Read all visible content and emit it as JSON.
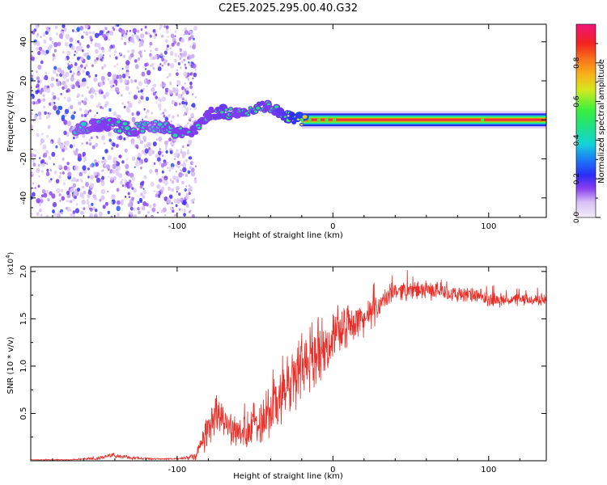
{
  "figure_title": "C2E5.2025.295.00.40.G32",
  "colors": {
    "snr_line": "#e8302a",
    "frame": "#000000"
  },
  "chart_data": [
    {
      "type": "heatmap",
      "title": "C2E5.2025.295.00.40.G32",
      "xlabel": "Height of straight line (km)",
      "ylabel": "Frequency (Hz)",
      "xlim": [
        -194,
        137
      ],
      "ylim": [
        -50,
        49
      ],
      "x_ticks": [
        -100,
        0,
        100
      ],
      "x_tick_labels": [
        "-100",
        "0",
        "100"
      ],
      "y_ticks": [
        -40,
        -20,
        0,
        20,
        40
      ],
      "y_tick_labels": [
        "-40",
        "-20",
        "0",
        "20",
        "40"
      ],
      "colorbar": {
        "label": "Normalized spectral amplitude",
        "range": [
          0,
          1
        ],
        "ticks": [
          0.0,
          0.2,
          0.4,
          0.6,
          0.8
        ],
        "tick_labels": [
          "0.0",
          "0.2",
          "0.4",
          "0.6",
          "0.8"
        ]
      },
      "components": [
        {
          "name": "noise scatter",
          "x_range": [
            -194,
            -88
          ],
          "freq_range": [
            -50,
            49
          ],
          "amplitude": [
            0.05,
            0.3
          ]
        },
        {
          "name": "rising trace",
          "x": [
            -160,
            -145,
            -130,
            -115,
            -100,
            -90,
            -80,
            -70,
            -60,
            -50,
            -40,
            -30,
            -20
          ],
          "freq": [
            -4,
            -2,
            -5,
            -3,
            -6,
            -7,
            3,
            4,
            3,
            6,
            7,
            2,
            0
          ],
          "amplitude": [
            0.4,
            0.45,
            0.45,
            0.4,
            0.45,
            0.45,
            0.45,
            0.5,
            0.45,
            0.5,
            0.45,
            0.55,
            0.7
          ]
        },
        {
          "name": "steady carrier",
          "x_range": [
            -20,
            137
          ],
          "freq": 0,
          "amplitude": 0.95
        }
      ]
    },
    {
      "type": "line",
      "xlabel": "Height of straight line (km)",
      "ylabel": "SNR (10 * v/v)",
      "y_multiplier": "(x10^4)",
      "y_multiplier_base": "(x10",
      "y_multiplier_exp": "4",
      "y_multiplier_close": ")",
      "xlim": [
        -194,
        137
      ],
      "ylim": [
        0,
        2.05
      ],
      "x_ticks": [
        -100,
        0,
        100
      ],
      "x_tick_labels": [
        "-100",
        "0",
        "100"
      ],
      "y_ticks": [
        0.5,
        1.0,
        1.5,
        2.0
      ],
      "y_tick_labels": [
        "0.5",
        "1.0",
        "1.5",
        "2.0"
      ],
      "series": [
        {
          "name": "SNR",
          "x": [
            -194,
            -170,
            -150,
            -140,
            -130,
            -115,
            -100,
            -88,
            -80,
            -75,
            -70,
            -60,
            -55,
            -50,
            -40,
            -30,
            -20,
            -10,
            0,
            10,
            20,
            25,
            30,
            40,
            50,
            60,
            70,
            80,
            90,
            100,
            110,
            120,
            130,
            137
          ],
          "y": [
            0.01,
            0.01,
            0.03,
            0.06,
            0.03,
            0.02,
            0.02,
            0.05,
            0.35,
            0.55,
            0.4,
            0.3,
            0.25,
            0.4,
            0.55,
            0.75,
            1.0,
            1.15,
            1.3,
            1.45,
            1.5,
            1.55,
            1.65,
            1.8,
            1.8,
            1.8,
            1.8,
            1.75,
            1.75,
            1.7,
            1.7,
            1.7,
            1.7,
            1.7
          ],
          "noise": [
            0.005,
            0.005,
            0.02,
            0.03,
            0.02,
            0.01,
            0.01,
            0.05,
            0.25,
            0.3,
            0.2,
            0.2,
            0.2,
            0.3,
            0.4,
            0.45,
            0.45,
            0.4,
            0.3,
            0.25,
            0.2,
            0.2,
            0.15,
            0.12,
            0.12,
            0.12,
            0.1,
            0.1,
            0.1,
            0.1,
            0.08,
            0.08,
            0.08,
            0.08
          ]
        }
      ]
    }
  ]
}
